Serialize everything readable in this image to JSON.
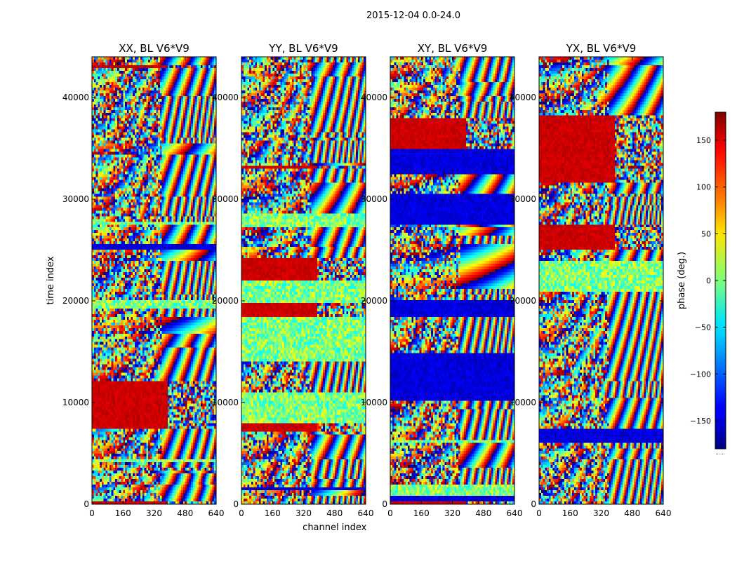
{
  "figure": {
    "suptitle": "2015-12-04 0.0-24.0"
  },
  "chart_data": [
    {
      "type": "heatmap",
      "title": "XX, BL V6*V9",
      "xlabel": "",
      "ylabel": "time index",
      "xlim": [
        0,
        640
      ],
      "ylim": [
        0,
        44000
      ],
      "xticks": [
        0,
        160,
        320,
        480,
        640
      ],
      "yticks": [
        0,
        10000,
        20000,
        30000,
        40000
      ],
      "colormap": "jet",
      "value_range": [
        -180,
        180
      ]
    },
    {
      "type": "heatmap",
      "title": "YY, BL V6*V9",
      "xlabel": "channel index",
      "ylabel": "",
      "xlim": [
        0,
        640
      ],
      "ylim": [
        0,
        44000
      ],
      "xticks": [
        0,
        160,
        320,
        480,
        640
      ],
      "yticks": [
        0,
        10000,
        20000,
        30000,
        40000
      ],
      "colormap": "jet",
      "value_range": [
        -180,
        180
      ]
    },
    {
      "type": "heatmap",
      "title": "XY, BL V6*V9",
      "xlabel": "",
      "ylabel": "",
      "xlim": [
        0,
        640
      ],
      "ylim": [
        0,
        44000
      ],
      "xticks": [
        0,
        160,
        320,
        480,
        640
      ],
      "yticks": [
        0,
        10000,
        20000,
        30000,
        40000
      ],
      "colormap": "jet",
      "value_range": [
        -180,
        180
      ]
    },
    {
      "type": "heatmap",
      "title": "YX, BL V6*V9",
      "xlabel": "",
      "ylabel": "",
      "xlim": [
        0,
        640
      ],
      "ylim": [
        0,
        44000
      ],
      "xticks": [
        0,
        160,
        320,
        480,
        640
      ],
      "yticks": [
        0,
        10000,
        20000,
        30000,
        40000
      ],
      "colormap": "jet",
      "value_range": [
        -180,
        180
      ]
    }
  ],
  "colorbar": {
    "label": "phase (deg.)",
    "range": [
      -180,
      180
    ],
    "ticks": [
      150,
      100,
      50,
      0,
      -50,
      -100,
      -150
    ],
    "tick_labels": [
      "150",
      "100",
      "50",
      "0",
      "−50",
      "−100",
      "−150"
    ],
    "footer": "......"
  }
}
